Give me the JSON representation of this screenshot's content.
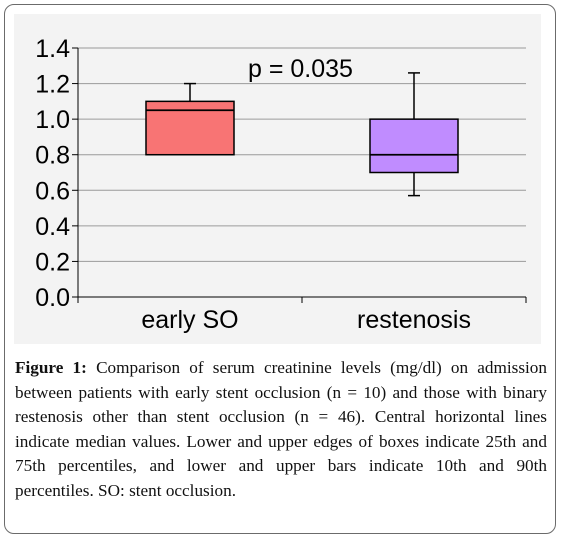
{
  "chart_data": {
    "type": "box",
    "categories": [
      "early SO",
      "restenosis"
    ],
    "series": [
      {
        "values": [
          {
            "category": "early SO",
            "p10": 0.8,
            "q1": 0.8,
            "median": 1.05,
            "q3": 1.1,
            "p90": 1.2,
            "fill": "#f87474"
          },
          {
            "category": "restenosis",
            "p10": 0.57,
            "q1": 0.7,
            "median": 0.8,
            "q3": 1.0,
            "p90": 1.26,
            "fill": "#c08cff"
          }
        ]
      }
    ],
    "ylim": [
      0,
      1.4
    ],
    "yticks": [
      "0.0",
      "0.2",
      "0.4",
      "0.6",
      "0.8",
      "1.0",
      "1.2",
      "1.4"
    ],
    "annotation": "p = 0.035",
    "grid": true,
    "colors": {
      "panel": "#f3f3f3",
      "gridline": "#9a9a9a",
      "axis": "#000000",
      "box_outline": "#000000"
    }
  },
  "caption": {
    "label": "Figure 1:",
    "text": "Comparison of serum creatinine levels (mg/dl) on admission between patients with early stent occlusion (n = 10) and those with binary restenosis other than stent occlusion (n = 46). Central horizontal lines indicate median values. Lower and upper edges of boxes indicate 25th and 75th percentiles, and lower and upper bars indicate 10th and 90th percentiles. SO: stent occlusion."
  }
}
